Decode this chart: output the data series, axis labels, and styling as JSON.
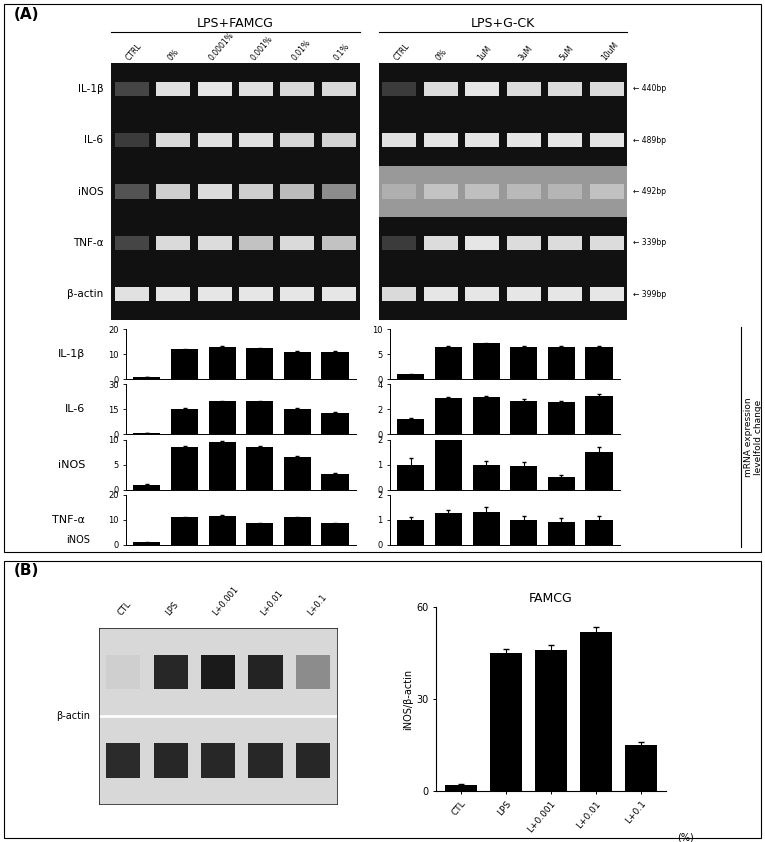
{
  "panel_A_label": "(A)",
  "panel_B_label": "(B)",
  "gel_labels_left": [
    "IL-1β",
    "IL-6",
    "iNOS",
    "TNF-α",
    "β-actin"
  ],
  "famcg_header": "LPS+FAMCG",
  "gck_header": "LPS+G-CK",
  "famcg_cols": [
    "CTRL",
    "0%",
    "0.0001%",
    "0.001%",
    "0.01%",
    "0.1%"
  ],
  "gck_cols": [
    "CTRL",
    "0%",
    "1uM",
    "3uM",
    "5uM",
    "10uM"
  ],
  "bp_labels": [
    "440bp",
    "489bp",
    "492bp",
    "339bp",
    "399bp"
  ],
  "bar_color": "#000000",
  "famcg_IL1b": [
    1.0,
    12.0,
    13.0,
    12.5,
    11.0,
    11.0
  ],
  "famcg_IL1b_err": [
    0.1,
    0.3,
    0.25,
    0.2,
    0.2,
    0.2
  ],
  "famcg_IL1b_ylim": [
    0,
    20
  ],
  "famcg_IL1b_yticks": [
    0,
    10,
    20
  ],
  "famcg_IL6": [
    1.0,
    15.5,
    20.0,
    20.0,
    15.5,
    13.0
  ],
  "famcg_IL6_err": [
    0.1,
    0.3,
    0.3,
    0.3,
    0.2,
    0.2
  ],
  "famcg_IL6_ylim": [
    0,
    30
  ],
  "famcg_IL6_yticks": [
    0,
    15,
    30
  ],
  "famcg_iNOS": [
    1.0,
    8.5,
    9.5,
    8.5,
    6.5,
    3.2
  ],
  "famcg_iNOS_err": [
    0.1,
    0.2,
    0.2,
    0.2,
    0.2,
    0.15
  ],
  "famcg_iNOS_ylim": [
    0,
    10
  ],
  "famcg_iNOS_yticks": [
    0,
    5,
    10
  ],
  "famcg_TNFa": [
    1.0,
    11.0,
    11.5,
    8.5,
    11.0,
    8.5
  ],
  "famcg_TNFa_err": [
    0.1,
    0.2,
    0.2,
    0.3,
    0.2,
    0.2
  ],
  "famcg_TNFa_ylim": [
    0,
    20
  ],
  "famcg_TNFa_yticks": [
    0,
    10,
    20
  ],
  "gck_IL1b": [
    1.0,
    6.5,
    7.2,
    6.5,
    6.5,
    6.5
  ],
  "gck_IL1b_err": [
    0.05,
    0.1,
    0.1,
    0.1,
    0.1,
    0.1
  ],
  "gck_IL1b_ylim": [
    0,
    10
  ],
  "gck_IL1b_yticks": [
    0,
    5,
    10
  ],
  "gck_IL6": [
    1.2,
    2.9,
    3.0,
    2.7,
    2.6,
    3.1
  ],
  "gck_IL6_err": [
    0.15,
    0.1,
    0.1,
    0.1,
    0.1,
    0.1
  ],
  "gck_IL6_ylim": [
    0,
    4
  ],
  "gck_IL6_yticks": [
    0,
    2,
    4
  ],
  "gck_iNOS": [
    1.0,
    2.0,
    1.0,
    0.95,
    0.5,
    1.5
  ],
  "gck_iNOS_err": [
    0.25,
    0.15,
    0.15,
    0.15,
    0.1,
    0.2
  ],
  "gck_iNOS_ylim": [
    0,
    2
  ],
  "gck_iNOS_yticks": [
    0,
    1,
    2
  ],
  "gck_TNFa": [
    1.0,
    1.25,
    1.3,
    1.0,
    0.9,
    1.0
  ],
  "gck_TNFa_err": [
    0.1,
    0.15,
    0.2,
    0.15,
    0.15,
    0.15
  ],
  "gck_TNFa_ylim": [
    0,
    2
  ],
  "gck_TNFa_yticks": [
    0,
    1,
    2
  ],
  "b_western_labels": [
    "CTL",
    "LPS",
    "L+0.001",
    "L+0.01",
    "L+0.1"
  ],
  "b_bar_values": [
    2,
    45,
    46,
    52,
    15
  ],
  "b_bar_err": [
    0.5,
    1.5,
    1.5,
    1.5,
    1.0
  ],
  "b_ylim": [
    0,
    60
  ],
  "b_yticks": [
    0,
    30,
    60
  ],
  "b_ylabel": "iNOS/β-actin",
  "b_title": "FAMCG",
  "b_xlabel_suffix": "(%)"
}
